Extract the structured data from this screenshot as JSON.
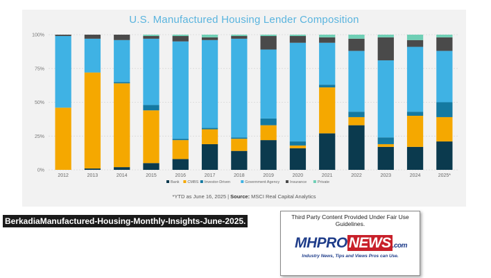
{
  "caption": "BerkadiaManufactured-Housing-Monthly-Insights-June-2025.",
  "badge": {
    "notice": "Third Party Content Provided Under Fair Use Guidelines.",
    "logo_mh": "MH",
    "logo_pro": "PRO",
    "logo_news": "NEWS",
    "logo_com": ".com",
    "tagline": "Industry News, Tips and Views Pros can Use."
  },
  "chart_data": {
    "type": "bar",
    "stacked": true,
    "title": "U.S. Manufactured Housing Lender Composition",
    "xlabel": "",
    "ylabel": "",
    "ylim": [
      0,
      100
    ],
    "yticks": [
      "0%",
      "25%",
      "50%",
      "75%",
      "100%"
    ],
    "grid": true,
    "legend_position": "bottom",
    "categories": [
      "2012",
      "2013",
      "2014",
      "2015",
      "2016",
      "2017",
      "2018",
      "2019",
      "2020",
      "2021",
      "2022",
      "2023",
      "2024",
      "2025*"
    ],
    "series": [
      {
        "name": "Bank",
        "color": "#0b3a4e",
        "values": [
          0,
          1,
          2,
          5,
          8,
          19,
          14,
          22,
          16,
          27,
          33,
          17,
          17,
          21
        ]
      },
      {
        "name": "CMBS",
        "color": "#f5a800",
        "values": [
          46,
          71,
          62,
          39,
          14,
          11,
          9,
          11,
          2,
          34,
          6,
          2,
          23,
          18
        ]
      },
      {
        "name": "Investor-Driven",
        "color": "#1479a1",
        "values": [
          0,
          0,
          1,
          4,
          1,
          1,
          1,
          5,
          3,
          2,
          4,
          5,
          3,
          11
        ]
      },
      {
        "name": "Government Agency",
        "color": "#3fb2e4",
        "values": [
          53,
          25,
          31,
          49,
          72,
          65,
          73,
          51,
          73,
          31,
          45,
          57,
          48,
          38
        ]
      },
      {
        "name": "Insurance",
        "color": "#4a4a4a",
        "values": [
          1,
          3,
          4,
          2,
          4,
          2,
          2,
          10,
          5,
          4,
          9,
          17,
          5,
          10
        ]
      },
      {
        "name": "Private",
        "color": "#6fcfb5",
        "values": [
          0,
          0,
          0,
          1,
          1,
          2,
          1,
          1,
          1,
          2,
          3,
          2,
          4,
          2
        ]
      }
    ],
    "footnote_prefix": "*YTD as June 16, 2025  |  ",
    "footnote_source_label": "Source:",
    "footnote_source": " MSCI Real Capital Analytics"
  }
}
